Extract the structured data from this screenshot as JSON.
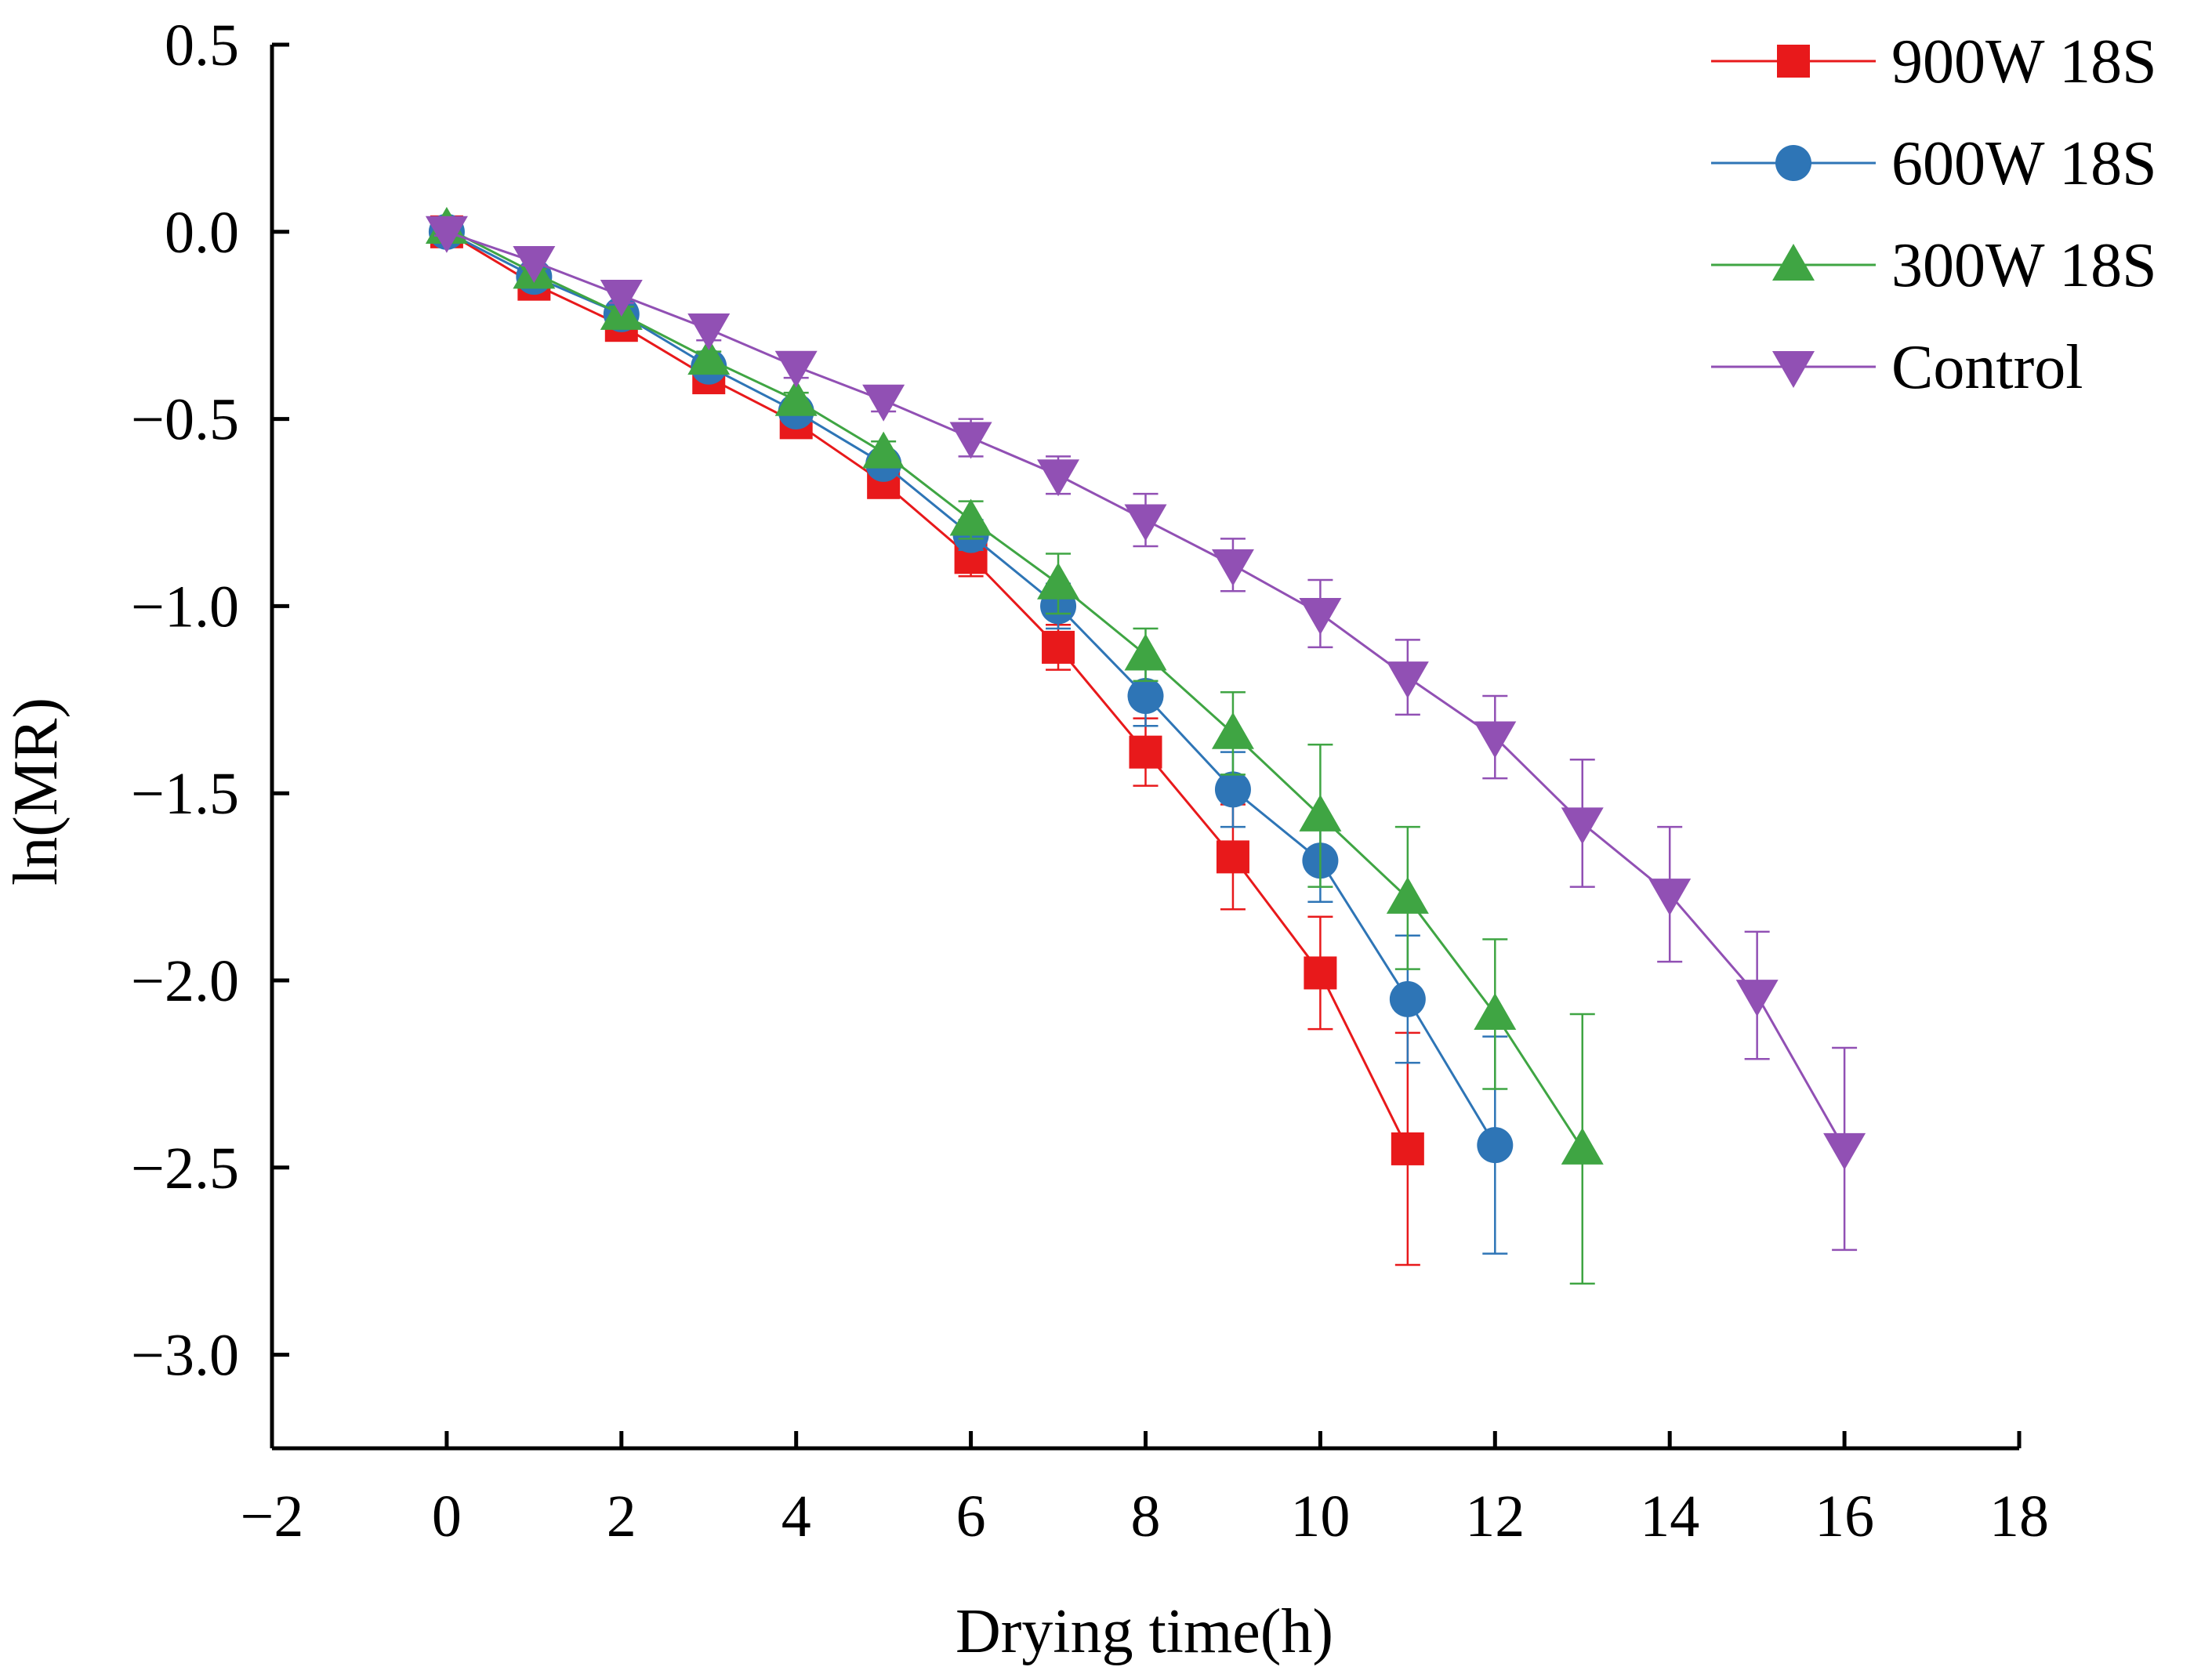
{
  "chart_data": {
    "type": "line",
    "title": "",
    "xlabel": "Drying time(h)",
    "ylabel": "ln(MR)",
    "xlim": [
      -2,
      18
    ],
    "ylim": [
      -3.25,
      0.5
    ],
    "xticks": [
      -2,
      0,
      2,
      4,
      6,
      8,
      10,
      12,
      14,
      16,
      18
    ],
    "xtick_labels": [
      "−2",
      "0",
      "2",
      "4",
      "6",
      "8",
      "10",
      "12",
      "14",
      "16",
      "18"
    ],
    "yticks": [
      0.5,
      0.0,
      -0.5,
      -1.0,
      -1.5,
      -2.0,
      -2.5,
      -3.0
    ],
    "ytick_labels": [
      "0.5",
      "0.0",
      "−0.5",
      "−1.0",
      "−1.5",
      "−2.0",
      "−2.5",
      "−3.0"
    ],
    "grid": false,
    "legend_position": "top-right",
    "series": [
      {
        "name": "900W 18S",
        "color": "#e8191b",
        "marker": "square",
        "x": [
          0,
          1,
          2,
          3,
          4,
          5,
          6,
          7,
          8,
          9,
          10,
          11
        ],
        "y": [
          0.0,
          -0.14,
          -0.25,
          -0.39,
          -0.51,
          -0.67,
          -0.87,
          -1.11,
          -1.39,
          -1.67,
          -1.98,
          -2.45
        ],
        "err": [
          0.01,
          0.01,
          0.02,
          0.02,
          0.02,
          0.03,
          0.05,
          0.06,
          0.09,
          0.14,
          0.15,
          0.31
        ]
      },
      {
        "name": "600W 18S",
        "color": "#2e75b6",
        "marker": "circle",
        "x": [
          0,
          1,
          2,
          3,
          4,
          5,
          6,
          7,
          8,
          9,
          10,
          11,
          12
        ],
        "y": [
          0.0,
          -0.12,
          -0.22,
          -0.36,
          -0.48,
          -0.62,
          -0.81,
          -1.0,
          -1.24,
          -1.49,
          -1.68,
          -2.05,
          -2.44
        ],
        "err": [
          0.01,
          0.01,
          0.02,
          0.02,
          0.02,
          0.03,
          0.04,
          0.06,
          0.08,
          0.1,
          0.11,
          0.17,
          0.29
        ]
      },
      {
        "name": "300W 18S",
        "color": "#3fa543",
        "marker": "triangle-up",
        "x": [
          0,
          1,
          2,
          3,
          4,
          5,
          6,
          7,
          8,
          9,
          10,
          11,
          12,
          13
        ],
        "y": [
          0.01,
          -0.11,
          -0.22,
          -0.34,
          -0.45,
          -0.59,
          -0.77,
          -0.94,
          -1.13,
          -1.34,
          -1.56,
          -1.78,
          -2.09,
          -2.45
        ],
        "err": [
          0.01,
          0.01,
          0.02,
          0.02,
          0.02,
          0.03,
          0.05,
          0.08,
          0.07,
          0.11,
          0.19,
          0.19,
          0.2,
          0.36
        ]
      },
      {
        "name": "Control",
        "color": "#9150b4",
        "marker": "triangle-down",
        "x": [
          0,
          1,
          2,
          3,
          4,
          5,
          6,
          7,
          8,
          9,
          10,
          11,
          12,
          13,
          14,
          15,
          16
        ],
        "y": [
          0.0,
          -0.08,
          -0.17,
          -0.26,
          -0.36,
          -0.45,
          -0.55,
          -0.65,
          -0.77,
          -0.89,
          -1.02,
          -1.19,
          -1.35,
          -1.58,
          -1.77,
          -2.04,
          -2.45
        ],
        "err": [
          0.01,
          0.01,
          0.02,
          0.03,
          0.03,
          0.03,
          0.05,
          0.05,
          0.07,
          0.07,
          0.09,
          0.1,
          0.11,
          0.17,
          0.18,
          0.17,
          0.27
        ]
      }
    ]
  }
}
